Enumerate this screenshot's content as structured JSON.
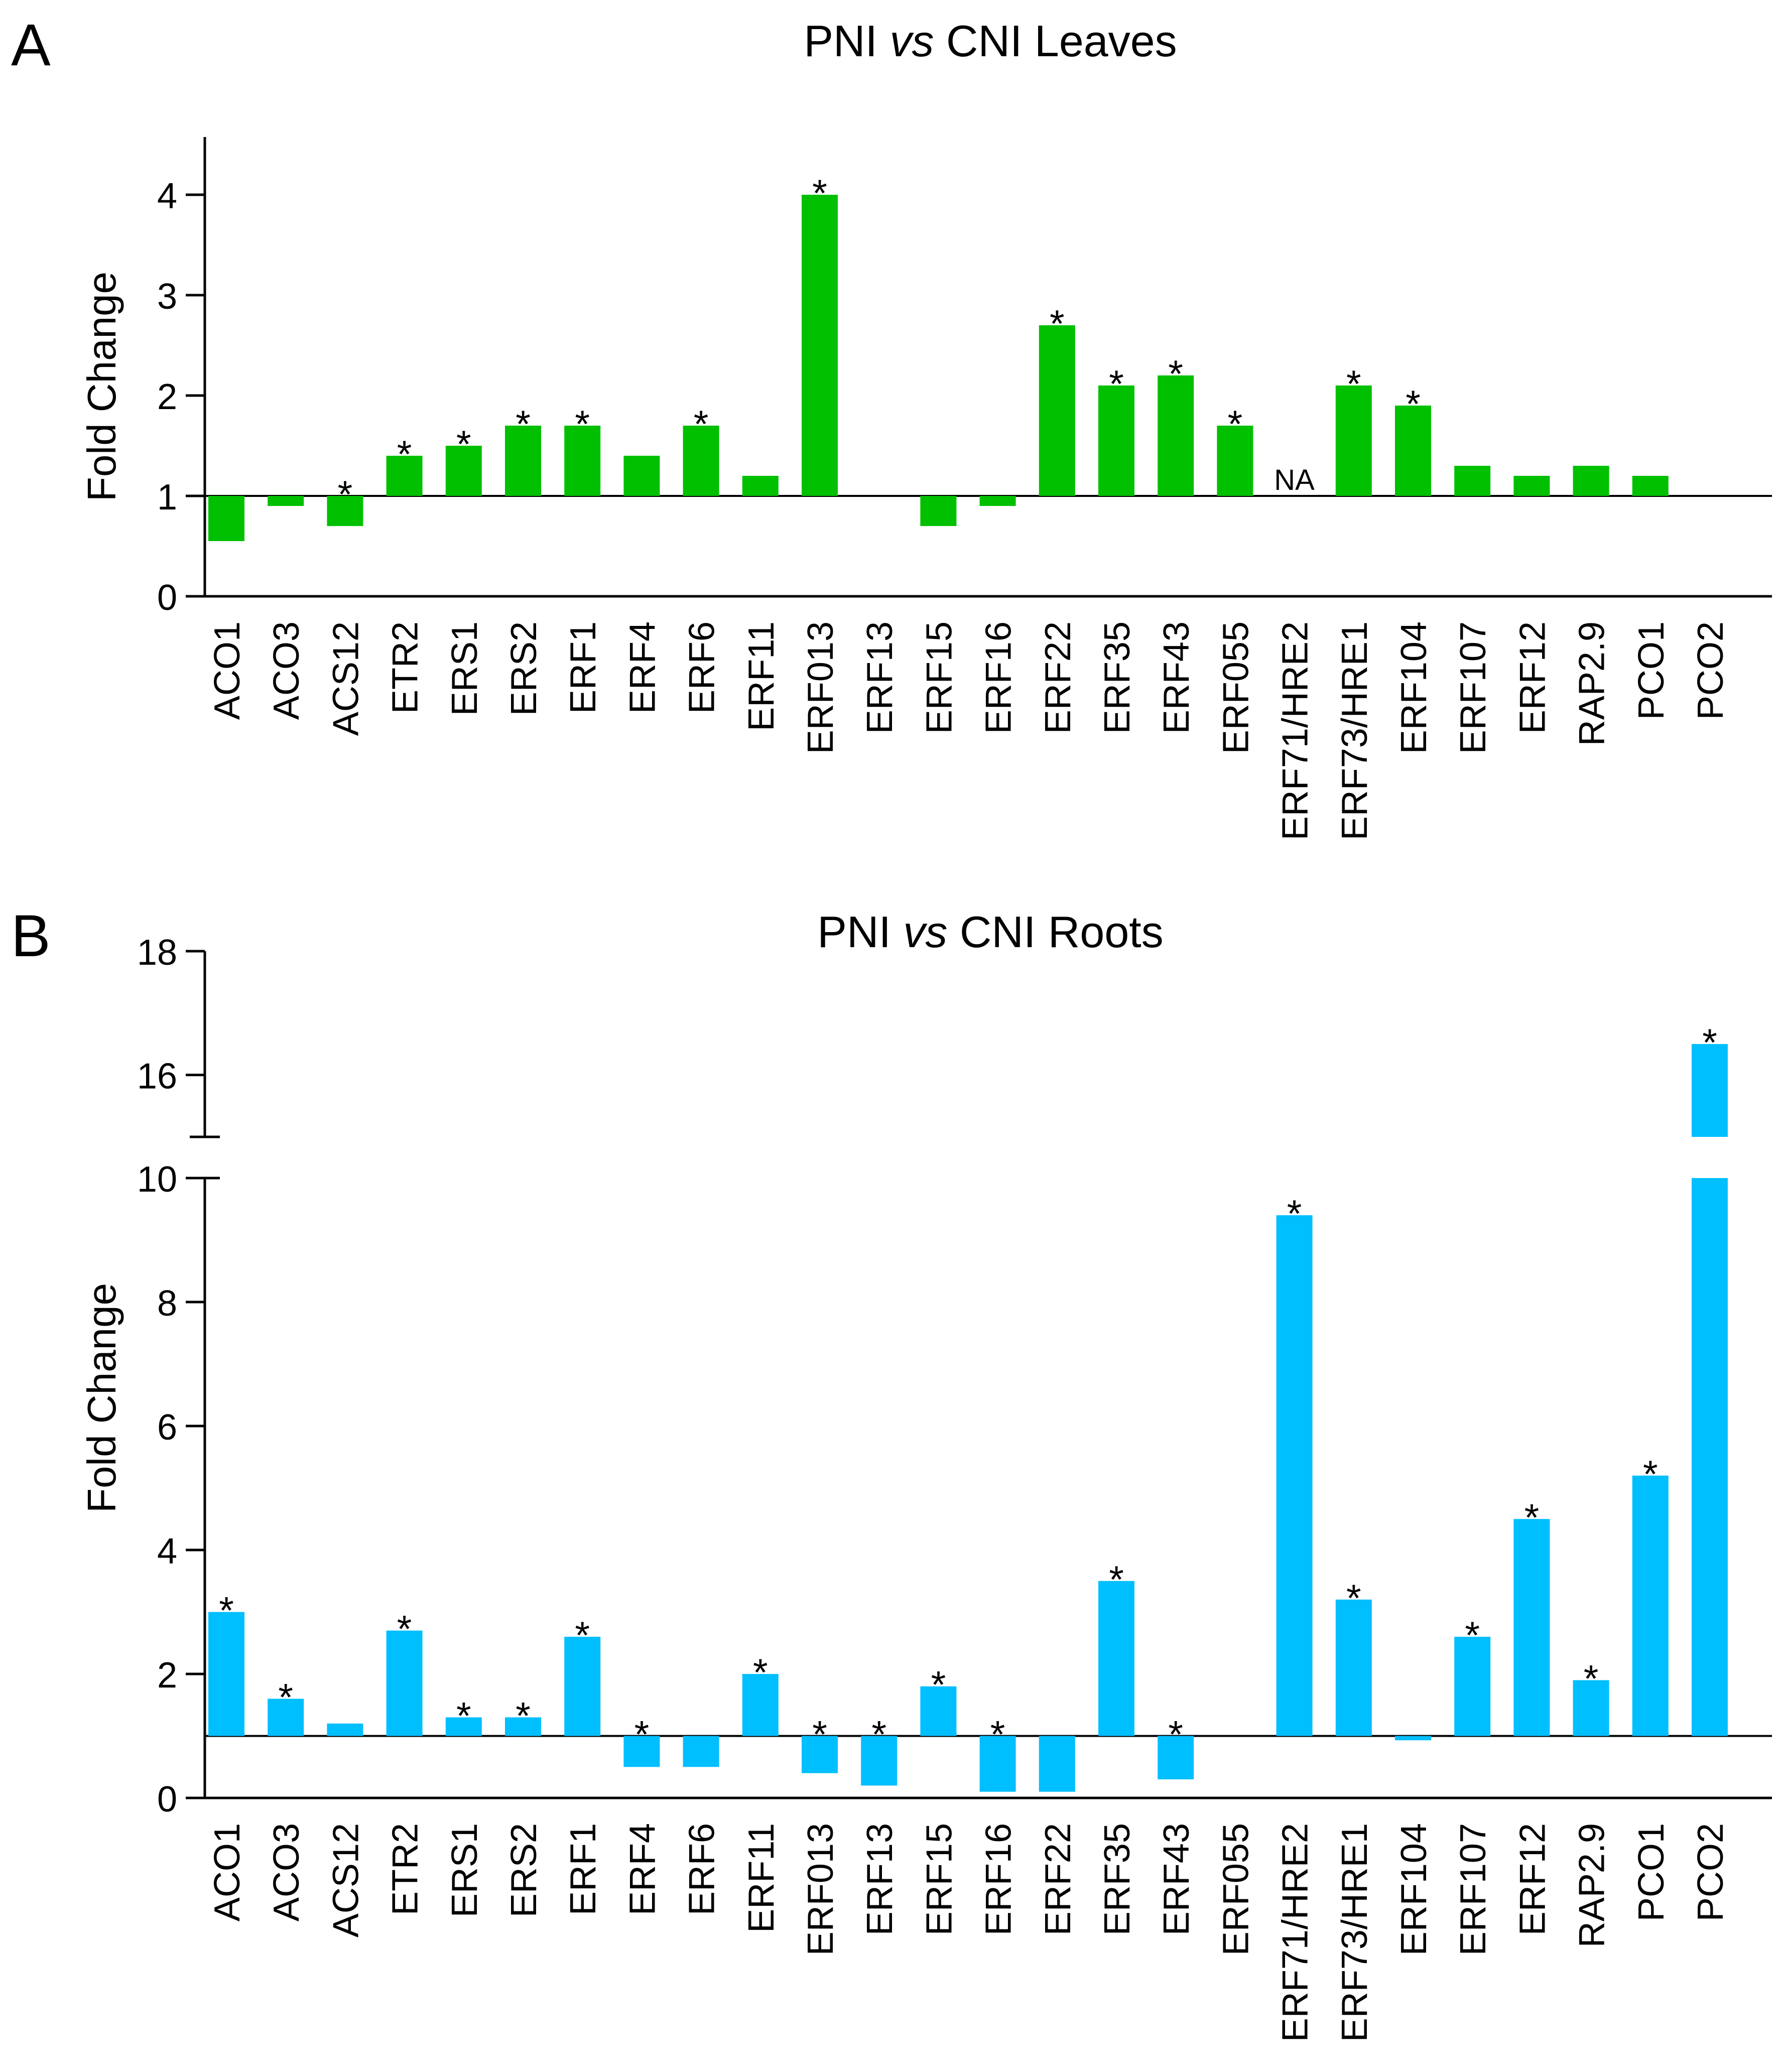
{
  "panels": [
    {
      "letter": "A"
    },
    {
      "letter": "B"
    }
  ],
  "colors": {
    "leaves_bar": "#00C000",
    "roots_bar": "#00BFFF",
    "axis": "#000000"
  },
  "chart_data": [
    {
      "type": "bar",
      "title_parts": {
        "pre": "PNI ",
        "italic": "vs",
        "post": " CNI Leaves"
      },
      "title": "PNI vs CNI Leaves",
      "ylabel": "Fold Change",
      "xlabel": "",
      "baseline": 1,
      "ylim": [
        0,
        4.5
      ],
      "yticks": [
        0,
        1,
        2,
        3,
        4
      ],
      "ytick_labels": [
        "0",
        "1",
        "2",
        "3",
        "4"
      ],
      "categories": [
        "ACO1",
        "ACO3",
        "ACS12",
        "ETR2",
        "ERS1",
        "ERS2",
        "ERF1",
        "ERF4",
        "ERF6",
        "ERF11",
        "ERF013",
        "ERF13",
        "ERF15",
        "ERF16",
        "ERF22",
        "ERF35",
        "ERF43",
        "ERF055",
        "ERF71/HRE2",
        "ERF73/HRE1",
        "ERF104",
        "ERF107",
        "ERF12",
        "RAP2.9",
        "PCO1",
        "PCO2"
      ],
      "values": [
        0.55,
        0.9,
        0.7,
        1.4,
        1.5,
        1.7,
        1.7,
        1.4,
        1.7,
        1.2,
        4.0,
        null,
        0.7,
        0.9,
        2.7,
        2.1,
        2.2,
        1.7,
        null,
        2.1,
        1.9,
        1.3,
        1.2,
        1.3,
        1.2,
        null
      ],
      "significant": [
        false,
        false,
        true,
        true,
        true,
        true,
        true,
        false,
        true,
        false,
        true,
        false,
        false,
        false,
        true,
        true,
        true,
        true,
        false,
        true,
        true,
        false,
        false,
        false,
        false,
        false
      ],
      "star_text": "*",
      "na_labels": [
        {
          "category": "ERF71/HRE2",
          "text": "NA"
        }
      ]
    },
    {
      "type": "bar",
      "title_parts": {
        "pre": "PNI ",
        "italic": "vs",
        "post": " CNI Roots"
      },
      "title": "PNI vs CNI Roots",
      "ylabel": "Fold Change",
      "xlabel": "",
      "baseline": 1,
      "ylim": [
        0,
        18
      ],
      "axis_break": {
        "lower_max": 10,
        "upper_min": 15.0,
        "upper_max": 18
      },
      "yticks": [
        0,
        2,
        4,
        6,
        8,
        10,
        16,
        18
      ],
      "ytick_labels": [
        "0",
        "2",
        "4",
        "6",
        "8",
        "10",
        "16",
        "18"
      ],
      "categories": [
        "ACO1",
        "ACO3",
        "ACS12",
        "ETR2",
        "ERS1",
        "ERS2",
        "ERF1",
        "ERF4",
        "ERF6",
        "ERF11",
        "ERF013",
        "ERF13",
        "ERF15",
        "ERF16",
        "ERF22",
        "ERF35",
        "ERF43",
        "ERF055",
        "ERF71/HRE2",
        "ERF73/HRE1",
        "ERF104",
        "ERF107",
        "ERF12",
        "RAP2.9",
        "PCO1",
        "PCO2"
      ],
      "values": [
        3.0,
        1.6,
        1.2,
        2.7,
        1.3,
        1.3,
        2.6,
        0.5,
        0.5,
        2.0,
        0.4,
        0.2,
        1.8,
        0.1,
        0.1,
        3.5,
        0.3,
        null,
        9.4,
        3.2,
        0.93,
        2.6,
        4.5,
        1.9,
        5.2,
        16.5
      ],
      "significant": [
        true,
        true,
        false,
        true,
        true,
        true,
        true,
        true,
        false,
        true,
        true,
        true,
        true,
        true,
        false,
        true,
        true,
        false,
        true,
        true,
        false,
        true,
        true,
        true,
        true,
        true
      ],
      "star_text": "*"
    }
  ]
}
